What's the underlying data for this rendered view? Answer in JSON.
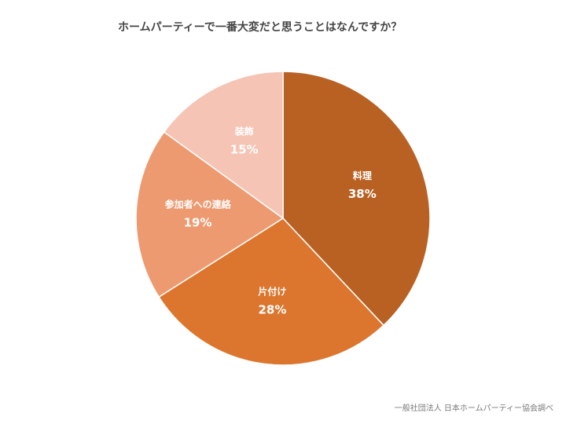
{
  "chart_data": {
    "type": "pie",
    "title": "ホームパーティーで一番大変だと思うことはなんですか？",
    "categories": [
      "料理",
      "片付け",
      "参加者への連絡",
      "装飾"
    ],
    "values": [
      38,
      28,
      19,
      15
    ],
    "value_labels": [
      "38%",
      "28%",
      "19%",
      "15%"
    ],
    "colors": [
      "#B86123",
      "#DC762E",
      "#EE9A70",
      "#F5C4B4"
    ],
    "legend": "none",
    "source": "一般社団法人 日本ホームパーティー協会調べ"
  }
}
